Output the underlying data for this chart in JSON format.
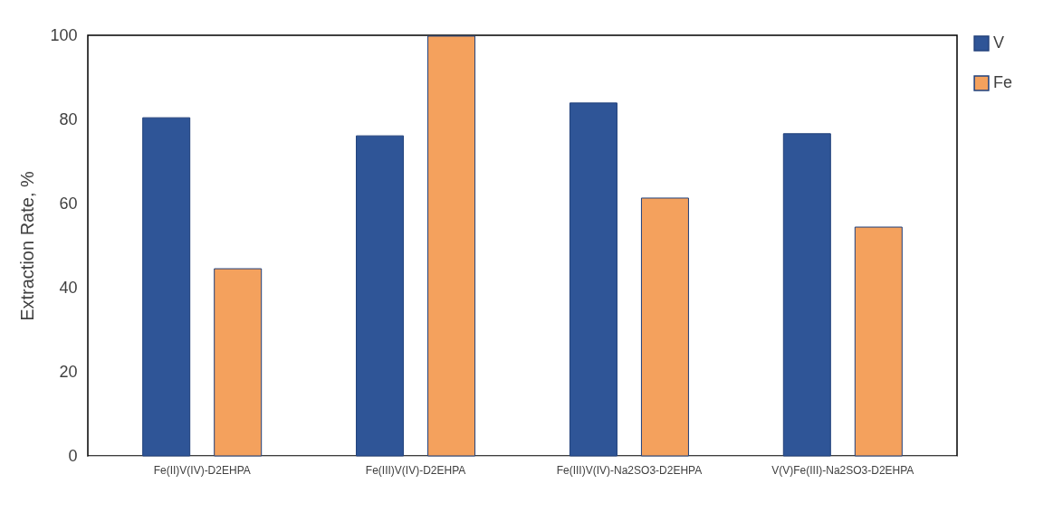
{
  "chart_data": {
    "type": "bar",
    "ylabel": "Extraction Rate, %",
    "categories": [
      "Fe(II)V(IV)-D2EHPA",
      "Fe(III)V(IV)-D2EHPA",
      "Fe(III)V(IV)-Na2SO3-D2EHPA",
      "V(V)Fe(III)-Na2SO3-D2EHPA"
    ],
    "series": [
      {
        "name": "V",
        "color": "#2f5597",
        "values": [
          80.4,
          76.1,
          83.9,
          76.6
        ]
      },
      {
        "name": "Fe",
        "color": "#f4a15d",
        "values": [
          44.5,
          99.8,
          61.3,
          54.4
        ]
      }
    ],
    "ylim": [
      0,
      100
    ],
    "yticks": [
      0,
      20,
      40,
      60,
      80,
      100
    ],
    "grid": false,
    "legend": "right"
  }
}
